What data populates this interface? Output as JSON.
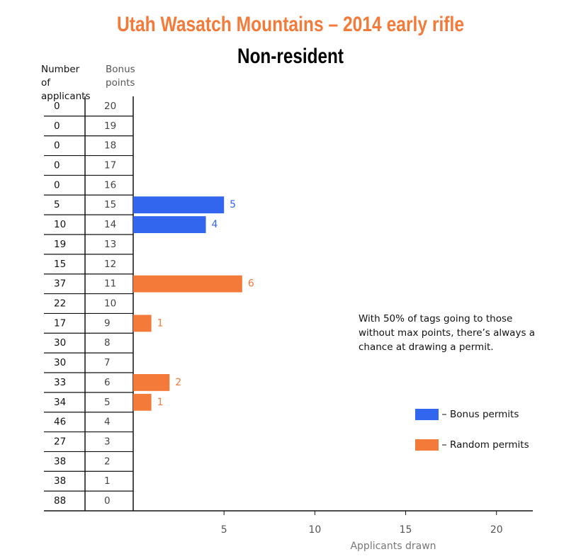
{
  "chart_data": {
    "type": "bar",
    "orientation": "horizontal",
    "title": "Utah Wasatch Mountains – 2014 early rifle",
    "subtitle": "Non-resident",
    "applicants_header": "Number of applicants",
    "category_header": "Bonus points",
    "categories": [
      "20",
      "19",
      "18",
      "17",
      "16",
      "15",
      "14",
      "13",
      "12",
      "11",
      "10",
      "9",
      "8",
      "7",
      "6",
      "5",
      "4",
      "3",
      "2",
      "1",
      "0"
    ],
    "applicants": [
      0,
      0,
      0,
      0,
      0,
      5,
      10,
      19,
      15,
      37,
      22,
      17,
      30,
      30,
      33,
      34,
      46,
      27,
      38,
      38,
      88
    ],
    "series": [
      {
        "name": "Bonus permits",
        "color": "#3366ee",
        "values": [
          null,
          null,
          null,
          null,
          null,
          5,
          4,
          null,
          null,
          null,
          null,
          null,
          null,
          null,
          null,
          null,
          null,
          null,
          null,
          null,
          null
        ]
      },
      {
        "name": "Random permits",
        "color": "#f47a3a",
        "values": [
          null,
          null,
          null,
          null,
          null,
          null,
          null,
          null,
          null,
          6,
          null,
          1,
          null,
          null,
          2,
          1,
          null,
          null,
          null,
          null,
          null
        ]
      }
    ],
    "xlabel": "Applicants drawn",
    "xlim": [
      0,
      22
    ],
    "xticks": [
      5,
      10,
      15,
      20
    ],
    "annotation": "With 50% of tags going to those without max points, there’s always a chance at drawing a permit.",
    "legend": "right"
  }
}
